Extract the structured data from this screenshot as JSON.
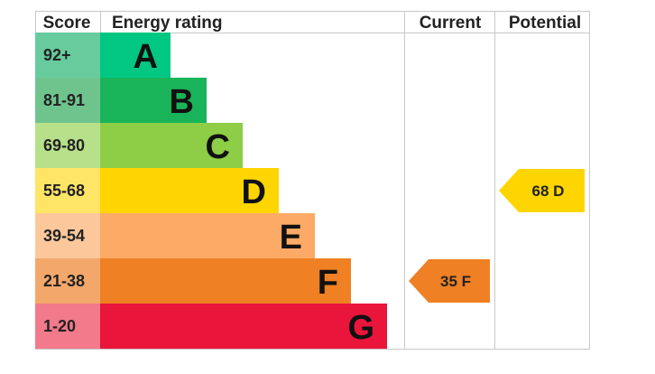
{
  "chart_data": {
    "type": "bar",
    "header": {
      "score": "Score",
      "energy_rating": "Energy rating",
      "current": "Current",
      "potential": "Potential"
    },
    "bands": [
      {
        "score": "92+",
        "letter": "A",
        "color": "#00c781",
        "score_color": "#67cb9e"
      },
      {
        "score": "81-91",
        "letter": "B",
        "color": "#19b459",
        "score_color": "#6fc48e"
      },
      {
        "score": "69-80",
        "letter": "C",
        "color": "#8dce46",
        "score_color": "#b6e08a"
      },
      {
        "score": "55-68",
        "letter": "D",
        "color": "#ffd500",
        "score_color": "#ffe566"
      },
      {
        "score": "39-54",
        "letter": "E",
        "color": "#fcaa65",
        "score_color": "#fcc89b"
      },
      {
        "score": "21-38",
        "letter": "F",
        "color": "#ef8023",
        "score_color": "#f4a76a"
      },
      {
        "score": "1-20",
        "letter": "G",
        "color": "#e9153b",
        "score_color": "#f27a8a"
      }
    ],
    "current": {
      "value": 35,
      "letter": "F",
      "label": "35  F",
      "color": "#ef8023"
    },
    "potential": {
      "value": 68,
      "letter": "D",
      "label": "68  D",
      "color": "#ffd500"
    }
  }
}
